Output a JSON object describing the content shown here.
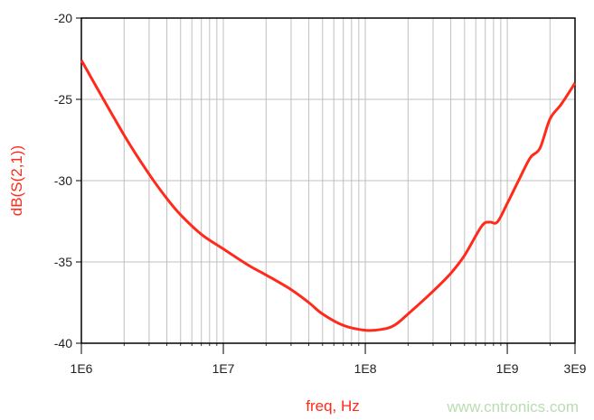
{
  "chart_data": {
    "type": "line",
    "title": "",
    "xlabel": "freq, Hz",
    "ylabel": "dB(S(2,1))",
    "x_scale": "log",
    "xlim": [
      1000000.0,
      3000000000.0
    ],
    "ylim": [
      -40,
      -20
    ],
    "grid": true,
    "x_tick_labels": [
      "1E6",
      "1E7",
      "1E8",
      "1E9",
      "3E9"
    ],
    "x_ticks": [
      1000000.0,
      10000000.0,
      100000000.0,
      1000000000.0,
      3000000000.0
    ],
    "y_tick_labels": [
      "-20",
      "-25",
      "-30",
      "-35",
      "-40"
    ],
    "y_ticks": [
      -20,
      -25,
      -30,
      -35,
      -40
    ],
    "series": [
      {
        "color": "#ff2a1a",
        "x": [
          1000000.0,
          2000000.0,
          3000000.0,
          4000000.0,
          5000000.0,
          7000000.0,
          10000000.0,
          15000000.0,
          20000000.0,
          30000000.0,
          40000000.0,
          50000000.0,
          70000000.0,
          100000000.0,
          130000000.0,
          160000000.0,
          200000000.0,
          300000000.0,
          400000000.0,
          500000000.0,
          660000000.0,
          750000000.0,
          850000000.0,
          1000000000.0,
          1200000000.0,
          1450000000.0,
          1700000000.0,
          2000000000.0,
          2400000000.0,
          3000000000.0
        ],
        "y": [
          -22.6,
          -27.2,
          -29.6,
          -31.1,
          -32.1,
          -33.3,
          -34.2,
          -35.2,
          -35.8,
          -36.7,
          -37.5,
          -38.2,
          -38.9,
          -39.2,
          -39.15,
          -38.9,
          -38.2,
          -36.8,
          -35.7,
          -34.6,
          -32.8,
          -32.55,
          -32.55,
          -31.4,
          -30.0,
          -28.6,
          -28.0,
          -26.2,
          -25.3,
          -24.0
        ]
      }
    ]
  },
  "watermark": "www.cntronics.com"
}
